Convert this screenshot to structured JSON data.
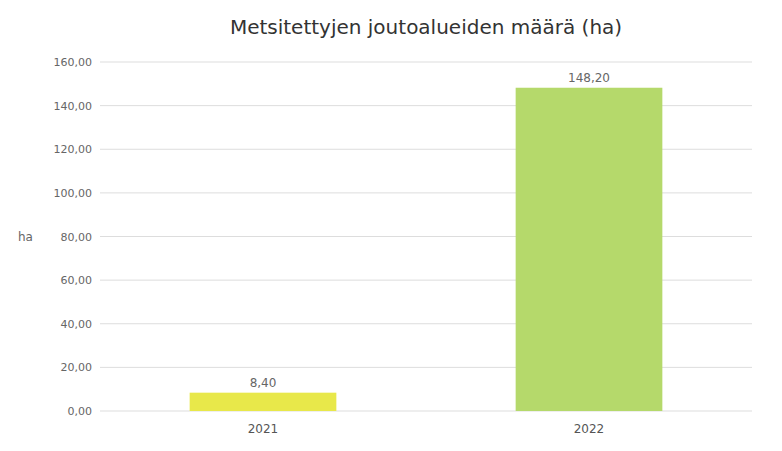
{
  "chart_data": {
    "type": "bar",
    "title": "Metsitettyjen joutoalueiden määrä (ha)",
    "categories": [
      "2021",
      "2022"
    ],
    "values": [
      8.4,
      148.2
    ],
    "value_labels": [
      "8,40",
      "148,20"
    ],
    "data_labels": true,
    "colors": [
      "#e8e84a",
      "#b5d96b"
    ],
    "ylabel": "ha",
    "ylim": [
      0,
      160
    ],
    "yticks": [
      {
        "value": 0,
        "label": "0,00"
      },
      {
        "value": 20,
        "label": "20,00"
      },
      {
        "value": 40,
        "label": "40,00"
      },
      {
        "value": 60,
        "label": "60,00"
      },
      {
        "value": 80,
        "label": "80,00"
      },
      {
        "value": 100,
        "label": "100,00"
      },
      {
        "value": 120,
        "label": "120,00"
      },
      {
        "value": 140,
        "label": "140,00"
      },
      {
        "value": 160,
        "label": "160,00"
      }
    ],
    "grid": true
  }
}
